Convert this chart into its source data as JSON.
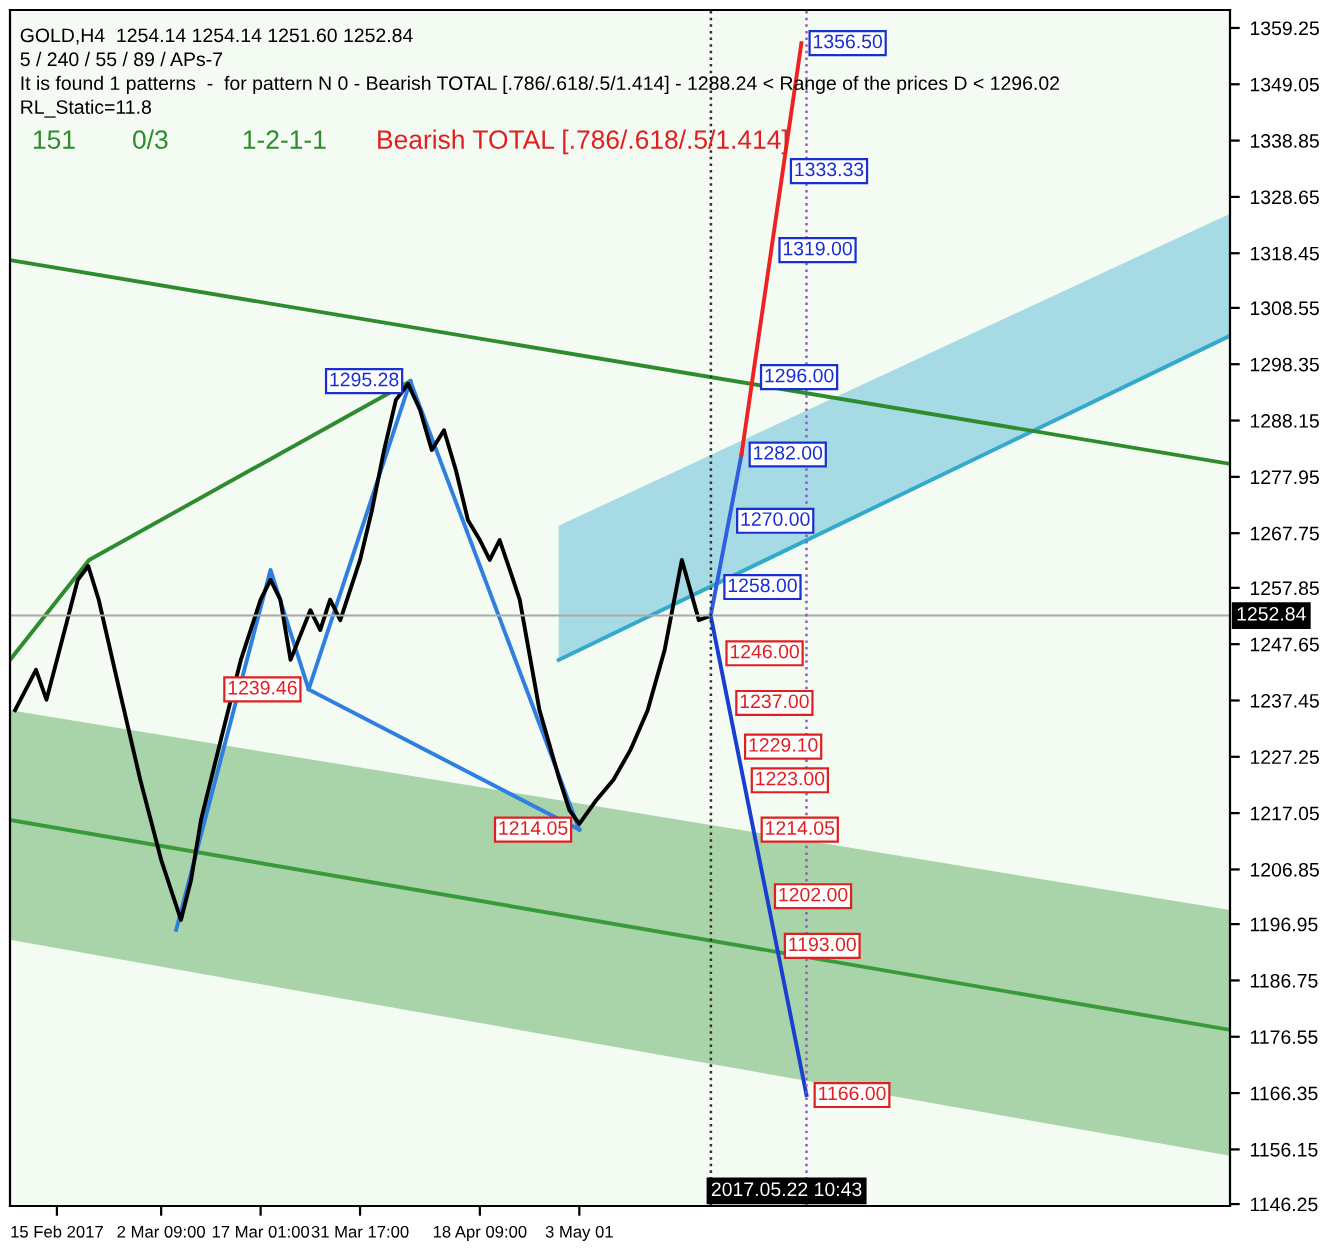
{
  "chart_data": {
    "type": "line",
    "annotations": [
      "GOLD,H4  1254.14 1254.14 1251.60 1252.84",
      "5 / 240 / 55 / 89 / APs-7",
      "It is found 1 patterns  -  for pattern N 0 - Bearish TOTAL [.786/.618/.5/1.414] - 1288.24 < Range of the prices D < 1296.02",
      "RL_Static=11.8",
      "151",
      "0/3",
      "1-2-1-1",
      "Bearish TOTAL [.786/.618/.5/1.414]",
      {
        "text": "1356.50",
        "x": "2017-06-04T19:00",
        "y": 1356.5
      },
      {
        "text": "1333.33",
        "x": "2017-06-02T01:00",
        "y": 1333.33
      },
      {
        "text": "1319.00",
        "x": "2017-05-31T08:24",
        "y": 1319.0
      },
      {
        "text": "1296.00",
        "x": "2017-05-28T15:10",
        "y": 1296.0
      },
      {
        "text": "1282.00",
        "x": "2017-05-26T23:00",
        "y": 1282.0
      },
      {
        "text": "1270.00",
        "x": "2017-05-25T02:40",
        "y": 1270.0
      },
      {
        "text": "1258.00",
        "x": "2017-05-23T05:30",
        "y": 1258.0
      },
      {
        "text": "1246.00",
        "x": "2017-05-23T13:00",
        "y": 1246.0
      },
      {
        "text": "1237.00",
        "x": "2017-05-24T23:45",
        "y": 1237.0
      },
      {
        "text": "1229.10",
        "x": "2017-05-26T06:43",
        "y": 1229.1
      },
      {
        "text": "1223.00",
        "x": "2017-05-27T06:30",
        "y": 1223.0
      },
      {
        "text": "1214.05",
        "x": "2017-05-28T17:30",
        "y": 1214.05
      },
      {
        "text": "1202.00",
        "x": "2017-05-30T16:30",
        "y": 1202.0
      },
      {
        "text": "1193.00",
        "x": "2017-06-01T03:36",
        "y": 1193.0
      },
      {
        "text": "1166.00",
        "x": "2017-06-05T13:00",
        "y": 1166.0
      },
      {
        "text": "1295.28",
        "x": "2017-04-08T03:00",
        "y": 1295.28
      },
      {
        "text": "1239.46",
        "x": "2017-03-24T03:00",
        "y": 1239.46
      },
      {
        "text": "1214.05",
        "x": "2017-05-03T01:00",
        "y": 1214.05
      }
    ],
    "series": [
      {
        "color": "#3a9a3a",
        "x": [
          "2017-02-08T02:00",
          "2017-08-07T00:00"
        ],
        "values": [
          1215.8,
          1177.8
        ],
        "lower": [
          1194.1,
          1155.0
        ],
        "upper": [
          1235.7,
          1199.5
        ]
      },
      {
        "color": "#33aacc",
        "x": [
          "2017-04-30T00:00",
          "2017-08-07T00:00"
        ],
        "values": [
          1244.8,
          1303.5
        ],
        "lower": [
          1244.8,
          1303.5
        ],
        "upper": [
          1269.1,
          1325.6
        ]
      },
      {
        "color": "#2e8b2e",
        "x": [
          "2017-02-08T02:00",
          "2017-08-07T00:00"
        ],
        "values": [
          1317.2,
          1280.3
        ]
      },
      {
        "color": "#2e8b2e",
        "x": [
          "2017-02-08T02:00",
          "2017-02-19T18:00",
          "2017-04-08T03:00"
        ],
        "values": [
          1244.8,
          1262.9,
          1295.28
        ]
      },
      {
        "color": "#2f7fe0",
        "x": [
          "2017-03-04T14:00",
          "2017-03-18T12:00",
          "2017-03-24T03:00",
          "2017-04-08T03:00"
        ],
        "values": [
          1195.9,
          1261.1,
          1239.46,
          1295.28
        ]
      },
      {
        "color": "#2f7fe0",
        "x": [
          "2017-03-24T03:00",
          "2017-05-03T01:00"
        ],
        "values": [
          1239.46,
          1214.05
        ]
      },
      {
        "color": "#2f7fe0",
        "x": [
          "2017-04-08T03:00",
          "2017-05-03T01:00"
        ],
        "values": [
          1295.28,
          1214.05
        ]
      },
      {
        "color": "#000000",
        "x": [
          "2017-02-08T20:00",
          "2017-02-11T22:00",
          "2017-02-13T11:00",
          "2017-02-15T00:00",
          "2017-02-18T02:00",
          "2017-02-19T15:00",
          "2017-02-21T04:00",
          "2017-02-24T05:00",
          "2017-02-27T07:00",
          "2017-03-02T09:00",
          "2017-03-05T07:00",
          "2017-03-06T19:00",
          "2017-03-08T06:00",
          "2017-03-11T04:00",
          "2017-03-14T03:00",
          "2017-03-17T01:00",
          "2017-03-18T12:00",
          "2017-03-19T23:00",
          "2017-03-21T11:00",
          "2017-03-24T09:00",
          "2017-03-25T20:00",
          "2017-03-27T07:00",
          "2017-03-28T19:00",
          "2017-03-31T17:00",
          "2017-04-02T11:00",
          "2017-04-04T06:00",
          "2017-04-06T00:00",
          "2017-04-07T19:00",
          "2017-04-09T13:00",
          "2017-04-11T07:00",
          "2017-04-13T02:00",
          "2017-04-14T20:00",
          "2017-04-16T15:00",
          "2017-04-18T09:00",
          "2017-04-19T20:00",
          "2017-04-21T07:00",
          "2017-04-22T19:00",
          "2017-04-24T06:00",
          "2017-04-27T04:00",
          "2017-04-30T03:00",
          "2017-05-01T14:00",
          "2017-05-03T01:00",
          "2017-05-05T13:00",
          "2017-05-08T02:00",
          "2017-05-10T14:00",
          "2017-05-13T03:00",
          "2017-05-15T15:00",
          "2017-05-18T04:00",
          "2017-05-20T16:00",
          "2017-05-22T10:00"
        ],
        "values": [
          1235.7,
          1243.0,
          1237.6,
          1244.8,
          1259.3,
          1261.8,
          1255.7,
          1239.4,
          1223.1,
          1208.6,
          1197.7,
          1205.0,
          1215.8,
          1230.3,
          1244.8,
          1255.7,
          1259.3,
          1255.7,
          1244.8,
          1253.8,
          1250.2,
          1255.7,
          1252.0,
          1262.9,
          1271.9,
          1282.8,
          1291.9,
          1294.8,
          1290.1,
          1282.8,
          1286.4,
          1279.2,
          1270.1,
          1266.5,
          1262.9,
          1266.5,
          1261.1,
          1255.7,
          1235.7,
          1223.1,
          1217.6,
          1215.1,
          1219.4,
          1223.1,
          1228.5,
          1235.7,
          1246.6,
          1262.9,
          1252.0,
          1252.8
        ]
      },
      {
        "color": "#2f5fe0",
        "x": [
          "2017-05-22T10:00",
          "2017-05-26T23:00"
        ],
        "values": [
          1252.8,
          1282.0
        ]
      },
      {
        "color": "#ee2222",
        "x": [
          "2017-05-26T23:00",
          "2017-06-04T19:00"
        ],
        "values": [
          1282.0,
          1356.5
        ]
      },
      {
        "color": "#1a3fd0",
        "x": [
          "2017-05-22T10:00",
          "2017-06-05T13:00"
        ],
        "values": [
          1252.8,
          1166.0
        ]
      }
    ],
    "xlim": [
      "2017-02-08T02:00",
      "2017-08-07T00:00"
    ],
    "xticks": [
      {
        "value": "2017-02-15",
        "label": "15 Feb 2017"
      },
      {
        "value": "2017-03-02T09:00",
        "label": "2 Mar 09:00"
      },
      {
        "value": "2017-03-17T01:00",
        "label": "17 Mar 01:00"
      },
      {
        "value": "2017-03-31T17:00",
        "label": "31 Mar 17:00"
      },
      {
        "value": "2017-04-18T09:00",
        "label": "18 Apr 09:00"
      },
      {
        "value": "2017-05-03T01:00",
        "label": "3 May 01"
      }
    ],
    "ylim": [
      1145.9,
      1362.5
    ],
    "yticks": [
      1146.25,
      1156.15,
      1166.35,
      1176.55,
      1186.75,
      1196.95,
      1206.85,
      1217.05,
      1227.25,
      1237.45,
      1247.65,
      1257.85,
      1267.75,
      1277.95,
      1288.15,
      1298.35,
      1308.55,
      1318.45,
      1328.65,
      1338.85,
      1349.05,
      1359.25
    ],
    "ref_lines": [
      {
        "axis": "y",
        "value": 1252.84,
        "label": "1252.84",
        "color": "#aaaaaa"
      },
      {
        "axis": "x",
        "value": "2017-05-22T10:43",
        "label": "2017.05.22 10:43",
        "color": "#333333",
        "line_style": "dotted"
      },
      {
        "axis": "x",
        "value": "2017-06-05T13:00",
        "color": "#9955cc",
        "line_style": "dotted"
      }
    ],
    "grid": false,
    "legend": false,
    "marker": "none",
    "line_style": "solid"
  }
}
